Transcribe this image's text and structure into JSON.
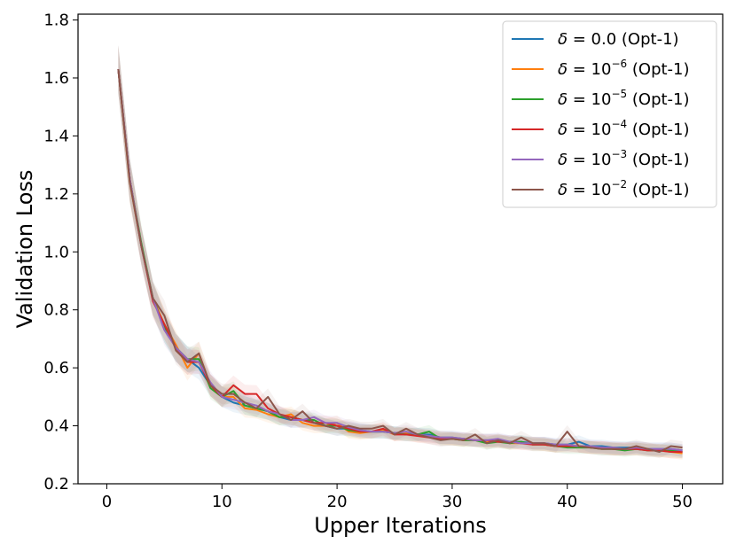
{
  "chart_data": {
    "type": "line",
    "xlabel": "Upper Iterations",
    "ylabel": "Validation Loss",
    "xlim": [
      -2.5,
      53.5
    ],
    "ylim": [
      0.2,
      1.82
    ],
    "xticks": [
      0,
      10,
      20,
      30,
      40,
      50
    ],
    "xtick_labels": [
      "0",
      "10",
      "20",
      "30",
      "40",
      "50"
    ],
    "yticks": [
      0.2,
      0.4,
      0.6,
      0.8,
      1.0,
      1.2,
      1.4,
      1.6,
      1.8
    ],
    "ytick_labels": [
      "0.2",
      "0.4",
      "0.6",
      "0.8",
      "1.0",
      "1.2",
      "1.4",
      "1.6",
      "1.8"
    ],
    "grid": false,
    "legend_position": "top-right",
    "x": [
      1,
      2,
      3,
      4,
      5,
      6,
      7,
      8,
      9,
      10,
      11,
      12,
      13,
      14,
      15,
      16,
      17,
      18,
      19,
      20,
      21,
      22,
      23,
      24,
      25,
      26,
      27,
      28,
      29,
      30,
      31,
      32,
      33,
      34,
      35,
      36,
      37,
      38,
      39,
      40,
      41,
      42,
      43,
      44,
      45,
      46,
      47,
      48,
      49,
      50
    ],
    "series": [
      {
        "name_prefix": "δ = ",
        "name_base": "0.0",
        "name_exp": "",
        "name_suffix": " (Opt-1)",
        "color": "#1f77b4",
        "values": [
          1.63,
          1.25,
          1.02,
          0.84,
          0.74,
          0.67,
          0.63,
          0.6,
          0.54,
          0.5,
          0.48,
          0.47,
          0.46,
          0.45,
          0.43,
          0.42,
          0.42,
          0.41,
          0.4,
          0.39,
          0.39,
          0.385,
          0.38,
          0.38,
          0.375,
          0.37,
          0.37,
          0.37,
          0.36,
          0.36,
          0.355,
          0.35,
          0.35,
          0.35,
          0.345,
          0.345,
          0.34,
          0.34,
          0.335,
          0.335,
          0.345,
          0.33,
          0.33,
          0.325,
          0.325,
          0.325,
          0.32,
          0.32,
          0.32,
          0.315
        ]
      },
      {
        "name_prefix": "δ = ",
        "name_base": "10",
        "name_exp": "−6",
        "name_suffix": " (Opt-1)",
        "color": "#ff7f0e",
        "values": [
          1.63,
          1.24,
          1.02,
          0.84,
          0.75,
          0.68,
          0.6,
          0.65,
          0.54,
          0.5,
          0.5,
          0.46,
          0.455,
          0.44,
          0.43,
          0.44,
          0.41,
          0.4,
          0.4,
          0.41,
          0.38,
          0.375,
          0.38,
          0.385,
          0.37,
          0.375,
          0.365,
          0.365,
          0.36,
          0.355,
          0.35,
          0.35,
          0.345,
          0.35,
          0.34,
          0.34,
          0.34,
          0.335,
          0.33,
          0.335,
          0.33,
          0.325,
          0.325,
          0.32,
          0.32,
          0.32,
          0.32,
          0.315,
          0.31,
          0.305
        ]
      },
      {
        "name_prefix": "δ = ",
        "name_base": "10",
        "name_exp": "−5",
        "name_suffix": " (Opt-1)",
        "color": "#2ca02c",
        "values": [
          1.63,
          1.25,
          1.03,
          0.84,
          0.74,
          0.67,
          0.63,
          0.63,
          0.53,
          0.5,
          0.52,
          0.47,
          0.46,
          0.45,
          0.43,
          0.43,
          0.42,
          0.42,
          0.4,
          0.4,
          0.385,
          0.38,
          0.38,
          0.38,
          0.375,
          0.37,
          0.37,
          0.38,
          0.355,
          0.355,
          0.35,
          0.35,
          0.34,
          0.345,
          0.34,
          0.345,
          0.335,
          0.335,
          0.33,
          0.325,
          0.325,
          0.325,
          0.32,
          0.32,
          0.315,
          0.32,
          0.315,
          0.315,
          0.315,
          0.31
        ]
      },
      {
        "name_prefix": "δ = ",
        "name_base": "10",
        "name_exp": "−4",
        "name_suffix": " (Opt-1)",
        "color": "#d62728",
        "values": [
          1.63,
          1.25,
          1.02,
          0.83,
          0.75,
          0.67,
          0.62,
          0.62,
          0.54,
          0.5,
          0.54,
          0.51,
          0.51,
          0.46,
          0.44,
          0.43,
          0.42,
          0.41,
          0.41,
          0.4,
          0.39,
          0.38,
          0.38,
          0.39,
          0.37,
          0.37,
          0.365,
          0.36,
          0.355,
          0.355,
          0.355,
          0.35,
          0.35,
          0.345,
          0.345,
          0.34,
          0.335,
          0.335,
          0.33,
          0.33,
          0.33,
          0.325,
          0.325,
          0.32,
          0.32,
          0.32,
          0.315,
          0.315,
          0.31,
          0.31
        ]
      },
      {
        "name_prefix": "δ = ",
        "name_base": "10",
        "name_exp": "−3",
        "name_suffix": " (Opt-1)",
        "color": "#9467bd",
        "values": [
          1.63,
          1.25,
          1.02,
          0.84,
          0.73,
          0.67,
          0.63,
          0.62,
          0.55,
          0.5,
          0.49,
          0.48,
          0.47,
          0.45,
          0.44,
          0.42,
          0.42,
          0.43,
          0.41,
          0.41,
          0.395,
          0.385,
          0.38,
          0.38,
          0.375,
          0.38,
          0.37,
          0.365,
          0.36,
          0.36,
          0.355,
          0.35,
          0.35,
          0.355,
          0.345,
          0.34,
          0.34,
          0.34,
          0.335,
          0.335,
          0.33,
          0.33,
          0.325,
          0.325,
          0.32,
          0.325,
          0.32,
          0.32,
          0.32,
          0.315
        ]
      },
      {
        "name_prefix": "δ = ",
        "name_base": "10",
        "name_exp": "−2",
        "name_suffix": " (Opt-1)",
        "color": "#8c564b",
        "values": [
          1.63,
          1.24,
          1.02,
          0.84,
          0.78,
          0.66,
          0.62,
          0.65,
          0.54,
          0.51,
          0.51,
          0.48,
          0.46,
          0.5,
          0.44,
          0.42,
          0.45,
          0.41,
          0.4,
          0.39,
          0.4,
          0.39,
          0.39,
          0.4,
          0.37,
          0.39,
          0.37,
          0.36,
          0.35,
          0.355,
          0.35,
          0.37,
          0.34,
          0.35,
          0.34,
          0.36,
          0.34,
          0.34,
          0.33,
          0.38,
          0.33,
          0.325,
          0.32,
          0.32,
          0.32,
          0.33,
          0.32,
          0.31,
          0.33,
          0.325
        ]
      }
    ]
  }
}
